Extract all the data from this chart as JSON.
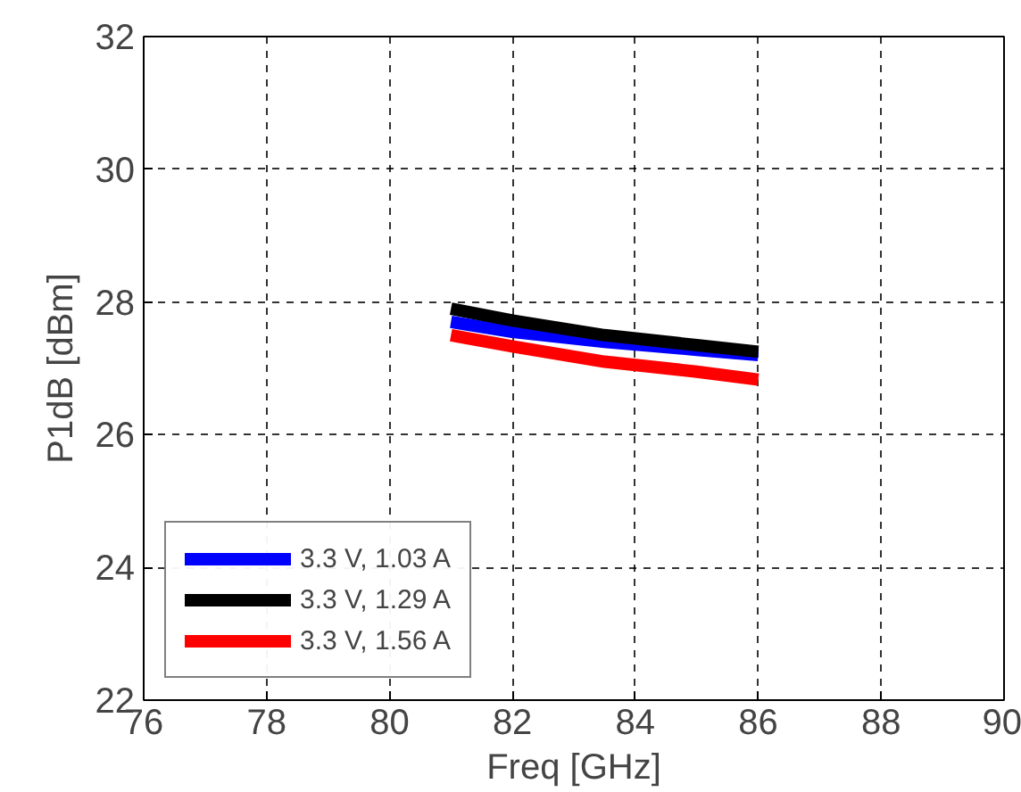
{
  "chart_data": {
    "type": "line",
    "xlabel": "Freq [GHz]",
    "ylabel": "P1dB [dBm]",
    "xlim": [
      76,
      90
    ],
    "xticks": [
      76,
      78,
      80,
      82,
      84,
      86,
      88,
      90
    ],
    "ylim": [
      22,
      32
    ],
    "yticks": [
      22,
      24,
      26,
      28,
      30,
      32
    ],
    "x": [
      81,
      82,
      83.5,
      85,
      86
    ],
    "series": [
      {
        "name": "3.3 V, 1.03 A",
        "color": "#0000ff",
        "values": [
          27.7,
          27.55,
          27.4,
          27.28,
          27.2
        ]
      },
      {
        "name": "3.3 V, 1.29 A",
        "color": "#000000",
        "values": [
          27.9,
          27.72,
          27.5,
          27.35,
          27.25
        ]
      },
      {
        "name": "3.3 V, 1.56 A",
        "color": "#ff0000",
        "values": [
          27.5,
          27.33,
          27.1,
          26.95,
          26.83
        ]
      }
    ],
    "grid": true,
    "legend": "bottom left",
    "line_style": "solid"
  }
}
